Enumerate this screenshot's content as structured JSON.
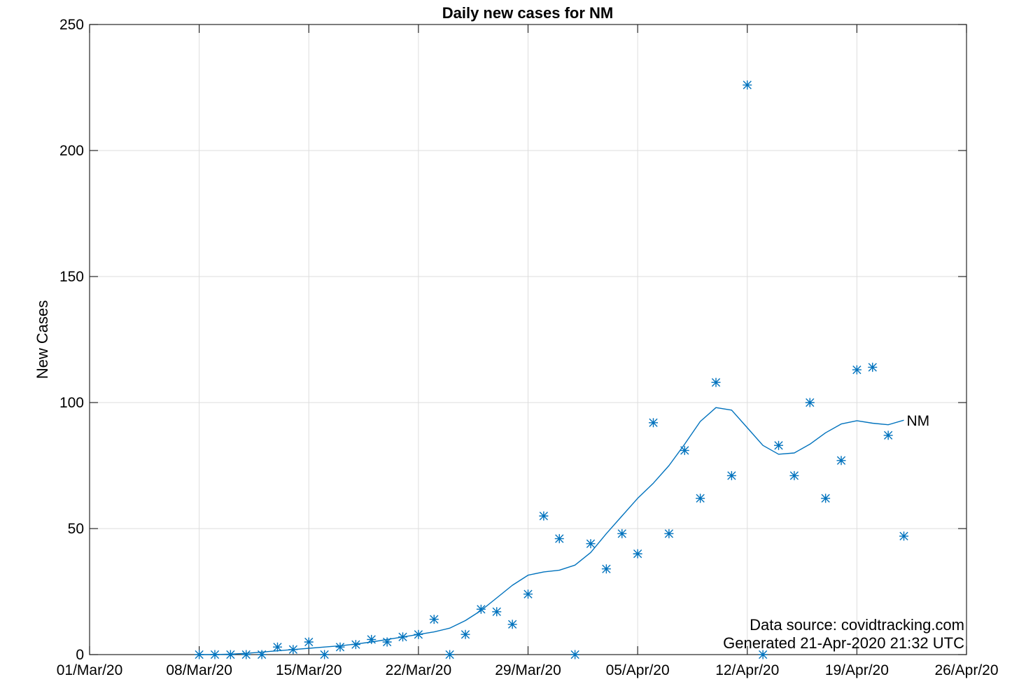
{
  "chart_data": {
    "type": "scatter",
    "title": "Daily new cases for NM",
    "xlabel": "",
    "ylabel": "New Cases",
    "x_type": "date",
    "xlim": [
      "2020-03-01",
      "2020-04-26"
    ],
    "ylim": [
      0,
      250
    ],
    "x_ticks": [
      "2020-03-01",
      "2020-03-08",
      "2020-03-15",
      "2020-03-22",
      "2020-03-29",
      "2020-04-05",
      "2020-04-12",
      "2020-04-19",
      "2020-04-26"
    ],
    "x_tick_labels": [
      "01/Mar/20",
      "08/Mar/20",
      "15/Mar/20",
      "22/Mar/20",
      "29/Mar/20",
      "05/Apr/20",
      "12/Apr/20",
      "19/Apr/20",
      "26/Apr/20"
    ],
    "y_ticks": [
      0,
      50,
      100,
      150,
      200,
      250
    ],
    "y_tick_labels": [
      "0",
      "50",
      "100",
      "150",
      "200",
      "250"
    ],
    "grid": true,
    "series": [
      {
        "name": "",
        "kind": "scatter",
        "marker": "asterisk",
        "color": "#0072BD",
        "x": [
          "2020-03-08",
          "2020-03-09",
          "2020-03-10",
          "2020-03-11",
          "2020-03-12",
          "2020-03-13",
          "2020-03-14",
          "2020-03-15",
          "2020-03-16",
          "2020-03-17",
          "2020-03-18",
          "2020-03-19",
          "2020-03-20",
          "2020-03-21",
          "2020-03-22",
          "2020-03-23",
          "2020-03-24",
          "2020-03-25",
          "2020-03-26",
          "2020-03-27",
          "2020-03-28",
          "2020-03-29",
          "2020-03-30",
          "2020-03-31",
          "2020-04-01",
          "2020-04-02",
          "2020-04-03",
          "2020-04-04",
          "2020-04-05",
          "2020-04-06",
          "2020-04-07",
          "2020-04-08",
          "2020-04-09",
          "2020-04-10",
          "2020-04-11",
          "2020-04-12",
          "2020-04-13",
          "2020-04-14",
          "2020-04-15",
          "2020-04-16",
          "2020-04-17",
          "2020-04-18",
          "2020-04-19",
          "2020-04-20",
          "2020-04-21",
          "2020-04-22"
        ],
        "y": [
          0,
          0,
          0,
          0,
          0,
          3,
          2,
          5,
          0,
          3,
          4,
          6,
          5,
          7,
          8,
          14,
          0,
          8,
          18,
          17,
          12,
          24,
          55,
          46,
          0,
          44,
          34,
          48,
          40,
          92,
          48,
          81,
          62,
          108,
          71,
          226,
          0,
          83,
          71,
          100,
          62,
          77,
          113,
          114,
          87,
          47
        ]
      },
      {
        "name": "NM",
        "kind": "line",
        "color": "#0072BD",
        "x": [
          "2020-03-08",
          "2020-03-09",
          "2020-03-10",
          "2020-03-11",
          "2020-03-12",
          "2020-03-13",
          "2020-03-14",
          "2020-03-15",
          "2020-03-16",
          "2020-03-17",
          "2020-03-18",
          "2020-03-19",
          "2020-03-20",
          "2020-03-21",
          "2020-03-22",
          "2020-03-23",
          "2020-03-24",
          "2020-03-25",
          "2020-03-26",
          "2020-03-27",
          "2020-03-28",
          "2020-03-29",
          "2020-03-30",
          "2020-03-31",
          "2020-04-01",
          "2020-04-02",
          "2020-04-03",
          "2020-04-04",
          "2020-04-05",
          "2020-04-06",
          "2020-04-07",
          "2020-04-08",
          "2020-04-09",
          "2020-04-10",
          "2020-04-11",
          "2020-04-12",
          "2020-04-13",
          "2020-04-14",
          "2020-04-15",
          "2020-04-16",
          "2020-04-17",
          "2020-04-18",
          "2020-04-19",
          "2020-04-20",
          "2020-04-21",
          "2020-04-22"
        ],
        "y": [
          0,
          0,
          0.2,
          0.5,
          1,
          1.5,
          2,
          2.5,
          3,
          3.5,
          4.2,
          5,
          6,
          7,
          8,
          9,
          10.5,
          13.5,
          17.5,
          22.5,
          27.5,
          31.5,
          32.8,
          33.5,
          35.5,
          40.5,
          48,
          55,
          62,
          68,
          75,
          83.5,
          92.5,
          98,
          97,
          90,
          83,
          79.5,
          80,
          83.5,
          88,
          91.5,
          92.8,
          91.8,
          91.2,
          93
        ]
      }
    ],
    "annotations": [
      "Data source: covidtracking.com",
      "Generated 21-Apr-2020 21:32 UTC"
    ]
  }
}
